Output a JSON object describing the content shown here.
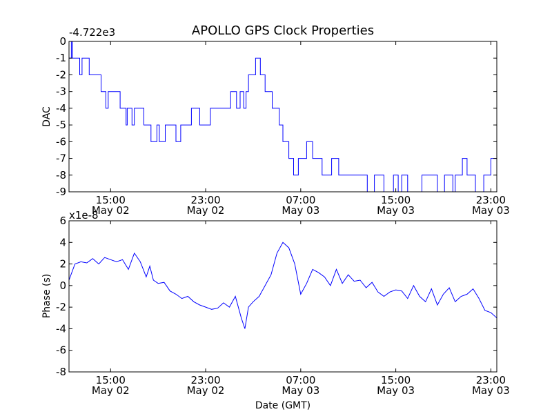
{
  "chart_data": [
    {
      "type": "line",
      "title": "APOLLO GPS Clock Properties",
      "ylabel": "DAC",
      "offset_label": "-4.722e3",
      "ylim": [
        -9,
        0
      ],
      "yticks": [
        "0",
        "-1",
        "-2",
        "-3",
        "-4",
        "-5",
        "-6",
        "-7",
        "-8",
        "-9"
      ],
      "xticks": [
        {
          "time": "15:00",
          "date": "May 02"
        },
        {
          "time": "23:00",
          "date": "May 02"
        },
        {
          "time": "07:00",
          "date": "May 03"
        },
        {
          "time": "15:00",
          "date": "May 03"
        },
        {
          "time": "23:00",
          "date": "May 03"
        }
      ],
      "xlim_hours": [
        11.5,
        47.5
      ],
      "line_color": "#0000ff",
      "series": [
        {
          "name": "DAC",
          "x_hours": [
            11.5,
            11.7,
            11.8,
            12.2,
            12.4,
            12.6,
            13.2,
            14.2,
            14.6,
            14.8,
            15.8,
            16.3,
            16.4,
            16.8,
            17.0,
            17.1,
            17.8,
            18.4,
            18.9,
            19.1,
            19.3,
            19.6,
            20.5,
            20.9,
            21.4,
            21.5,
            21.8,
            22.0,
            22.5,
            23.4,
            24.6,
            25.1,
            25.6,
            25.9,
            26.2,
            26.4,
            26.6,
            27.2,
            27.6,
            28.0,
            28.6,
            29.2,
            29.5,
            30.0,
            30.4,
            30.8,
            31.5,
            32.0,
            32.8,
            33.6,
            34.2,
            35.0,
            36.6,
            37.2,
            38.0,
            38.8,
            39.2,
            39.5,
            40.0,
            41.2,
            42.5,
            43.1,
            43.8,
            44.0,
            44.6,
            45.0,
            45.7,
            46.4,
            47.0,
            47.5
          ],
          "values": [
            -1,
            0,
            -1,
            -1,
            -2,
            -1,
            -2,
            -3,
            -4,
            -3,
            -4,
            -5,
            -4,
            -5,
            -4,
            -4,
            -5,
            -6,
            -5,
            -6,
            -6,
            -5,
            -6,
            -5,
            -5,
            -5,
            -4,
            -4,
            -5,
            -4,
            -4,
            -3,
            -4,
            -3,
            -4,
            -3,
            -2,
            -1,
            -2,
            -3,
            -4,
            -5,
            -6,
            -7,
            -8,
            -7,
            -6,
            -7,
            -8,
            -7,
            -8,
            -8,
            -9,
            -8,
            -9,
            -8,
            -9,
            -8,
            -9,
            -8,
            -9,
            -8,
            -9,
            -8,
            -7,
            -8,
            -9,
            -8,
            -7,
            -7
          ]
        }
      ]
    },
    {
      "type": "line",
      "ylabel": "Phase (s)",
      "xlabel": "Date (GMT)",
      "offset_label": "x1e-8",
      "ylim": [
        -8,
        6
      ],
      "yticks": [
        "6",
        "4",
        "2",
        "0",
        "-2",
        "-4",
        "-6",
        "-8"
      ],
      "xticks": [
        {
          "time": "15:00",
          "date": "May 02"
        },
        {
          "time": "23:00",
          "date": "May 02"
        },
        {
          "time": "07:00",
          "date": "May 03"
        },
        {
          "time": "15:00",
          "date": "May 03"
        },
        {
          "time": "23:00",
          "date": "May 03"
        }
      ],
      "xlim_hours": [
        11.5,
        47.5
      ],
      "line_color": "#0000ff",
      "series": [
        {
          "name": "Phase",
          "x_hours": [
            11.5,
            12.0,
            12.5,
            13.0,
            13.5,
            14.0,
            14.5,
            15.0,
            15.5,
            16.0,
            16.5,
            17.0,
            17.5,
            18.0,
            18.3,
            18.6,
            19.0,
            19.5,
            20.0,
            20.5,
            21.0,
            21.5,
            22.0,
            22.5,
            23.0,
            23.5,
            24.0,
            24.5,
            25.0,
            25.5,
            26.0,
            26.3,
            26.6,
            27.0,
            27.5,
            28.0,
            28.5,
            29.0,
            29.5,
            30.0,
            30.5,
            31.0,
            31.5,
            32.0,
            32.5,
            33.0,
            33.5,
            34.0,
            34.5,
            35.0,
            35.5,
            36.0,
            36.5,
            37.0,
            37.5,
            38.0,
            38.5,
            39.0,
            39.5,
            40.0,
            40.5,
            41.0,
            41.5,
            42.0,
            42.5,
            43.0,
            43.5,
            44.0,
            44.5,
            45.0,
            45.5,
            46.0,
            46.5,
            47.0,
            47.5
          ],
          "values": [
            0.5,
            2.0,
            2.2,
            2.1,
            2.5,
            2.0,
            2.6,
            2.4,
            2.2,
            2.4,
            1.5,
            3.0,
            2.2,
            0.8,
            1.8,
            0.5,
            0.2,
            0.3,
            -0.5,
            -0.8,
            -1.2,
            -1.0,
            -1.5,
            -1.8,
            -2.0,
            -2.2,
            -2.1,
            -1.6,
            -2.0,
            -1.0,
            -3.0,
            -4.0,
            -2.0,
            -1.5,
            -1.0,
            0.0,
            1.0,
            3.0,
            4.0,
            3.5,
            2.0,
            -0.8,
            0.2,
            1.5,
            1.2,
            0.8,
            0.0,
            1.5,
            0.2,
            1.0,
            0.4,
            0.5,
            -0.2,
            0.3,
            -0.6,
            -1.0,
            -0.6,
            -0.4,
            -0.5,
            -1.2,
            0.0,
            -1.0,
            -1.5,
            -0.3,
            -1.8,
            -0.8,
            -0.2,
            -1.5,
            -1.0,
            -0.8,
            -0.3,
            -1.2,
            -2.3,
            -2.5,
            -3.0
          ]
        }
      ]
    }
  ]
}
